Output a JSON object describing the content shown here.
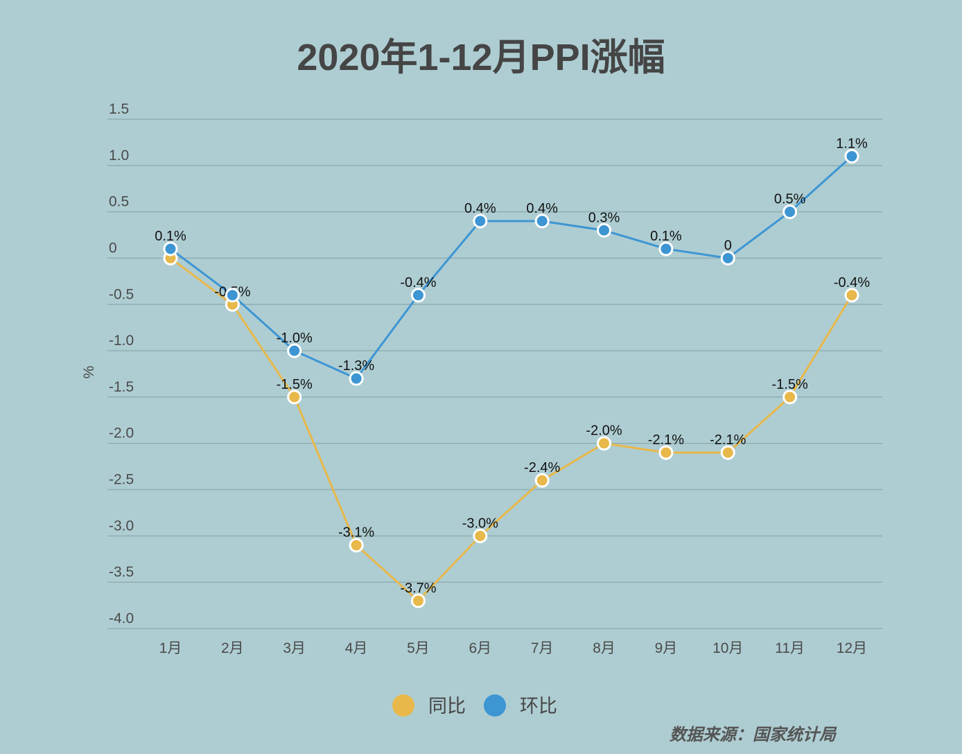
{
  "chart_data": {
    "type": "line",
    "title": "2020年1-12月PPI涨幅",
    "ylabel": "%",
    "xlabel": "",
    "categories": [
      "1月",
      "2月",
      "3月",
      "4月",
      "5月",
      "6月",
      "7月",
      "8月",
      "9月",
      "10月",
      "11月",
      "12月"
    ],
    "ylim": [
      -4.0,
      1.5
    ],
    "yticks": [
      "1.5",
      "1.0",
      "0.5",
      "0",
      "-0.5",
      "-1.0",
      "-1.5",
      "-2.0",
      "-2.5",
      "-3.0",
      "-3.5",
      "-4.0"
    ],
    "grid": true,
    "legend_position": "bottom",
    "series": [
      {
        "name": "同比",
        "color": "#e8b84a",
        "values": [
          0,
          -0.5,
          -1.5,
          -3.1,
          -3.7,
          -3.0,
          -2.4,
          -2.0,
          -2.1,
          -2.1,
          -1.5,
          -0.4
        ],
        "labels": [
          "",
          "-0.5%",
          "-1.5%",
          "-3.1%",
          "-3.7%",
          "-3.0%",
          "-2.4%",
          "-2.0%",
          "-2.1%",
          "-2.1%",
          "-1.5%",
          "-0.4%"
        ]
      },
      {
        "name": "环比",
        "color": "#3d95d3",
        "values": [
          0.1,
          -0.4,
          -1.0,
          -1.3,
          -0.4,
          0.4,
          0.4,
          0.3,
          0.1,
          0,
          0.5,
          1.1
        ],
        "labels": [
          "0.1%",
          "",
          "-1.0%",
          "-1.3%",
          "-0.4%",
          "0.4%",
          "0.4%",
          "0.3%",
          "0.1%",
          "0",
          "0.5%",
          "1.1%"
        ]
      }
    ],
    "source": "数据来源：国家统计局"
  }
}
